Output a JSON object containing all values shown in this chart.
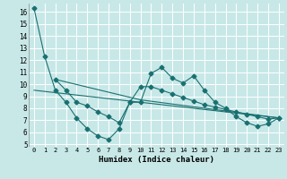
{
  "title": "",
  "xlabel": "Humidex (Indice chaleur)",
  "bg_color": "#c8e8e8",
  "grid_color": "#ffffff",
  "line_color": "#1a7070",
  "xlim": [
    -0.5,
    23.5
  ],
  "ylim": [
    4.8,
    16.7
  ],
  "yticks": [
    5,
    6,
    7,
    8,
    9,
    10,
    11,
    12,
    13,
    14,
    15,
    16
  ],
  "xticks": [
    0,
    1,
    2,
    3,
    4,
    5,
    6,
    7,
    8,
    9,
    10,
    11,
    12,
    13,
    14,
    15,
    16,
    17,
    18,
    19,
    20,
    21,
    22,
    23
  ],
  "series": [
    {
      "x": [
        0,
        1,
        2,
        3,
        4,
        5,
        6,
        7,
        8,
        9,
        10,
        11,
        12,
        13,
        14,
        15,
        16,
        17,
        18,
        19,
        20,
        21,
        22,
        23
      ],
      "y": [
        16.3,
        12.3,
        9.5,
        8.5,
        7.2,
        6.3,
        5.7,
        5.4,
        6.3,
        8.5,
        8.5,
        10.9,
        11.4,
        10.5,
        10.1,
        10.7,
        9.5,
        8.5,
        8.0,
        7.3,
        6.8,
        6.5,
        6.7,
        7.2
      ],
      "marker": "D",
      "markersize": 2.5
    },
    {
      "x": [
        2,
        3,
        4,
        5,
        6,
        7,
        8,
        9,
        10,
        11,
        12,
        13,
        14,
        15,
        16,
        17,
        18,
        19,
        20,
        21,
        22,
        23
      ],
      "y": [
        10.4,
        9.5,
        8.5,
        8.2,
        7.7,
        7.3,
        6.8,
        8.5,
        9.8,
        9.8,
        9.5,
        9.2,
        8.9,
        8.6,
        8.3,
        8.1,
        7.9,
        7.7,
        7.5,
        7.3,
        7.1,
        7.2
      ],
      "marker": "D",
      "markersize": 2.5
    },
    {
      "x": [
        2,
        10,
        23
      ],
      "y": [
        10.4,
        8.7,
        7.2
      ],
      "marker": null,
      "markersize": 0
    },
    {
      "x": [
        0,
        23
      ],
      "y": [
        9.5,
        7.2
      ],
      "marker": null,
      "markersize": 0
    }
  ]
}
